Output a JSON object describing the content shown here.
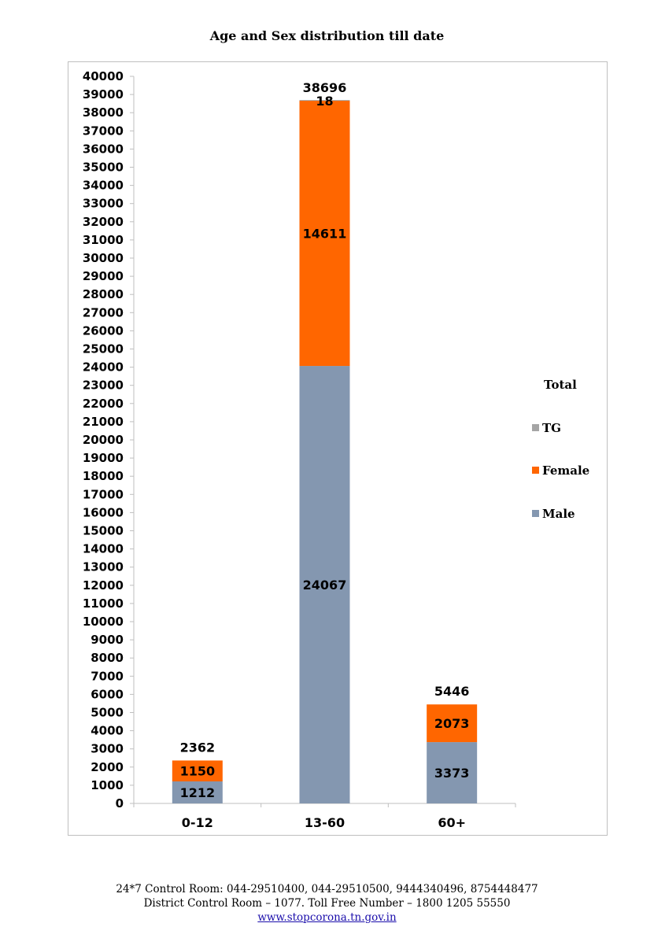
{
  "title": "Age and Sex distribution till date",
  "chart_data": {
    "type": "bar",
    "stacked": true,
    "title": "Age and Sex distribution till date",
    "categories": [
      "0-12",
      "13-60",
      "60+"
    ],
    "series": [
      {
        "name": "Male",
        "values": [
          1212,
          24067,
          3373
        ],
        "color": "#8497B0"
      },
      {
        "name": "Female",
        "values": [
          1150,
          14611,
          2073
        ],
        "color": "#FF6600"
      },
      {
        "name": "TG",
        "values": [
          0,
          18,
          0
        ],
        "color": "#A5A5A5"
      }
    ],
    "totals": [
      2362,
      38696,
      5446
    ],
    "total_label": "Total",
    "ylim": [
      0,
      40000
    ],
    "ytick_step": 1000,
    "grid": false,
    "legend_position": "right"
  },
  "legend": {
    "title": "Total",
    "items": [
      {
        "label": "TG",
        "color": "#A5A5A5"
      },
      {
        "label": "Female",
        "color": "#FF6600"
      },
      {
        "label": "Male",
        "color": "#8497B0"
      }
    ]
  },
  "footer": {
    "line1": "24*7 Control Room: 044-29510400, 044-29510500, 9444340496, 8754448477",
    "line2": "District Control Room – 1077. Toll Free Number – 1800 1205 55550",
    "link": "www.stopcorona.tn.gov.in"
  }
}
